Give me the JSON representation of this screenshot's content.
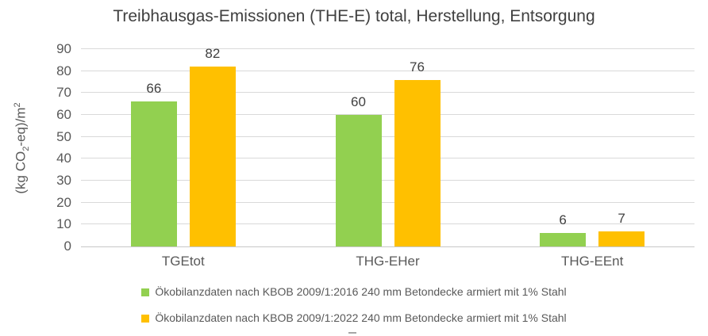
{
  "chart_data": {
    "type": "bar",
    "title": "Treibhausgas-Emissionen (THE-E) total, Herstellung, Entsorgung",
    "ylabel": "(kg CO₂-eq)/m²",
    "ylabel_rich": [
      {
        "t": "(kg CO",
        "style": "normal"
      },
      {
        "t": "2",
        "style": "sub"
      },
      {
        "t": "-eq)/m",
        "style": "normal"
      },
      {
        "t": "2",
        "style": "sup"
      }
    ],
    "xlabel": "",
    "categories": [
      "TGEtot",
      "THG-EHer",
      "THG-EEnt"
    ],
    "series": [
      {
        "name": "Ökobilanzdaten nach KBOB 2009/1:2016 240 mm Betondecke armiert mit 1% Stahl",
        "color": "#92D050",
        "values": [
          66,
          60,
          6
        ]
      },
      {
        "name": "Ökobilanzdaten nach KBOB 2009/1:2022 240 mm Betondecke armiert mit 1% Stahl",
        "color": "#FFC000",
        "values": [
          82,
          76,
          7
        ]
      }
    ],
    "ylim": [
      0,
      90
    ],
    "ytick_step": 10,
    "yticks": [
      0,
      10,
      20,
      30,
      40,
      50,
      60,
      70,
      80,
      90
    ],
    "grid": true,
    "data_labels": true,
    "legend_position": "bottom",
    "colors": {
      "gridline": "#D9D9D9",
      "axis_line": "#C8C8C8",
      "title_text": "#404040",
      "axis_text": "#595959",
      "data_label_text": "#404040",
      "legend_text": "#595959",
      "background": "#FFFFFF"
    }
  }
}
